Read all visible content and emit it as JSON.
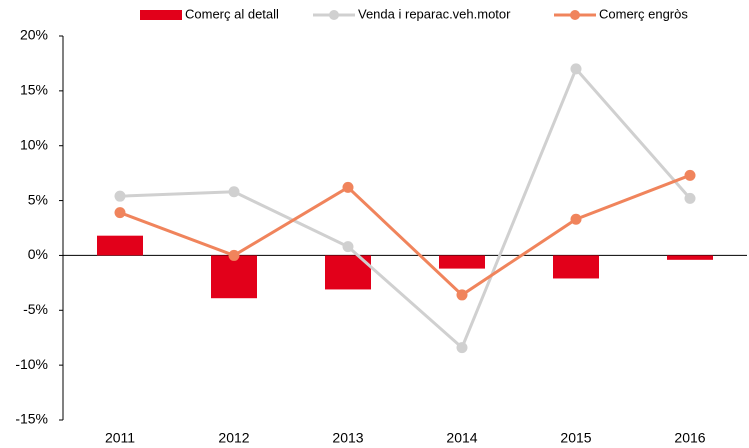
{
  "chart_data": {
    "type": "bar",
    "categories": [
      "2011",
      "2012",
      "2013",
      "2014",
      "2015",
      "2016"
    ],
    "series": [
      {
        "name": "Comerç al detall",
        "type": "bar",
        "color": "#e2001a",
        "values": [
          1.8,
          -3.9,
          -3.1,
          -1.2,
          -2.1,
          -0.4
        ]
      },
      {
        "name": "Venda i reparac.veh.motor",
        "type": "line",
        "color": "#d0d0d0",
        "values": [
          5.4,
          5.8,
          0.8,
          -8.4,
          17,
          5.2
        ]
      },
      {
        "name": "Comerç engròs",
        "type": "line",
        "color": "#f0845c",
        "values": [
          3.9,
          0,
          6.2,
          -3.6,
          3.3,
          7.3
        ]
      }
    ],
    "ylim": [
      -15,
      20
    ],
    "yticks": [
      {
        "value": -15,
        "label": "-15%"
      },
      {
        "value": -10,
        "label": "-10%"
      },
      {
        "value": -5,
        "label": "-5%"
      },
      {
        "value": 0,
        "label": "0%"
      },
      {
        "value": 5,
        "label": "5%"
      },
      {
        "value": 10,
        "label": "10%"
      },
      {
        "value": 15,
        "label": "15%"
      },
      {
        "value": 20,
        "label": "20%"
      }
    ],
    "legend": "top"
  }
}
